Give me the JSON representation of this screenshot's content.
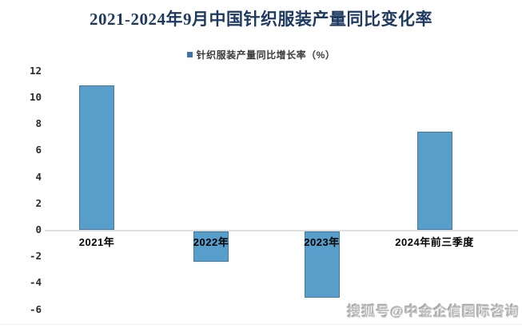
{
  "title": "2021-2024年9月中国针织服装产量同比变化率",
  "legend": {
    "label": "针织服装产量同比增长率（%）",
    "marker_color": "#4472a8"
  },
  "watermark": "搜狐号@中金企信国际咨询",
  "chart_data": {
    "type": "bar",
    "title": "2021-2024年9月中国针织服装产量同比变化率",
    "legend_entries": [
      "针织服装产量同比增长率（%）"
    ],
    "legend_position": "top",
    "categories": [
      "2021年",
      "2022年",
      "2023年",
      "2024年前三季度"
    ],
    "values": [
      10.9,
      -2.3,
      -5.0,
      7.4
    ],
    "xlabel": "",
    "ylabel": "",
    "yticks": [
      12,
      10,
      8,
      6,
      4,
      2,
      0,
      -2,
      -4,
      -6
    ],
    "ylim": [
      -6,
      12
    ],
    "grid": false,
    "title_color": "#1f3a60",
    "bar_color": "#589eca",
    "bar_border_color": "#45799f",
    "axis_line_color": "#dedede",
    "tick_label_color": "#2b2b2b"
  }
}
